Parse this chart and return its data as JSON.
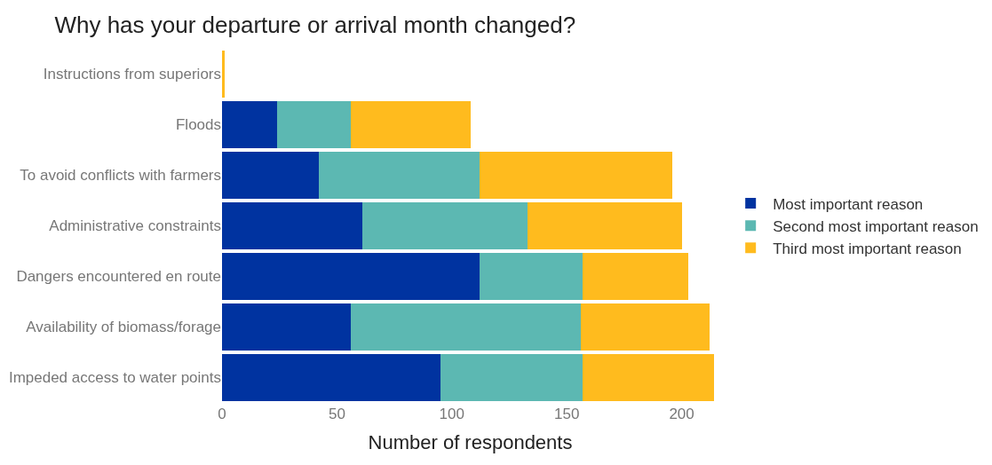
{
  "chart_data": {
    "type": "bar",
    "orientation": "horizontal",
    "stacked": true,
    "title": "Why has your departure or arrival month changed?",
    "xlabel": "Number of respondents",
    "categories": [
      "Instructions from superiors",
      "Floods",
      "To avoid conflicts with farmers",
      "Administrative constraints",
      "Dangers encountered en route",
      "Availability of biomass/forage",
      "Impeded access to water points"
    ],
    "series": [
      {
        "name": "Most important reason",
        "color": "#0033a0",
        "values": [
          0,
          24,
          42,
          61,
          112,
          56,
          95
        ]
      },
      {
        "name": "Second most important reason",
        "color": "#5cb8b2",
        "values": [
          0,
          32,
          70,
          72,
          45,
          100,
          62
        ]
      },
      {
        "name": "Third most important reason",
        "color": "#ffbb1e",
        "values": [
          1,
          52,
          84,
          67,
          46,
          56,
          57
        ]
      }
    ],
    "xlim": [
      0,
      216
    ],
    "xticks": [
      0,
      50,
      100,
      150,
      200
    ],
    "legend": "right"
  }
}
